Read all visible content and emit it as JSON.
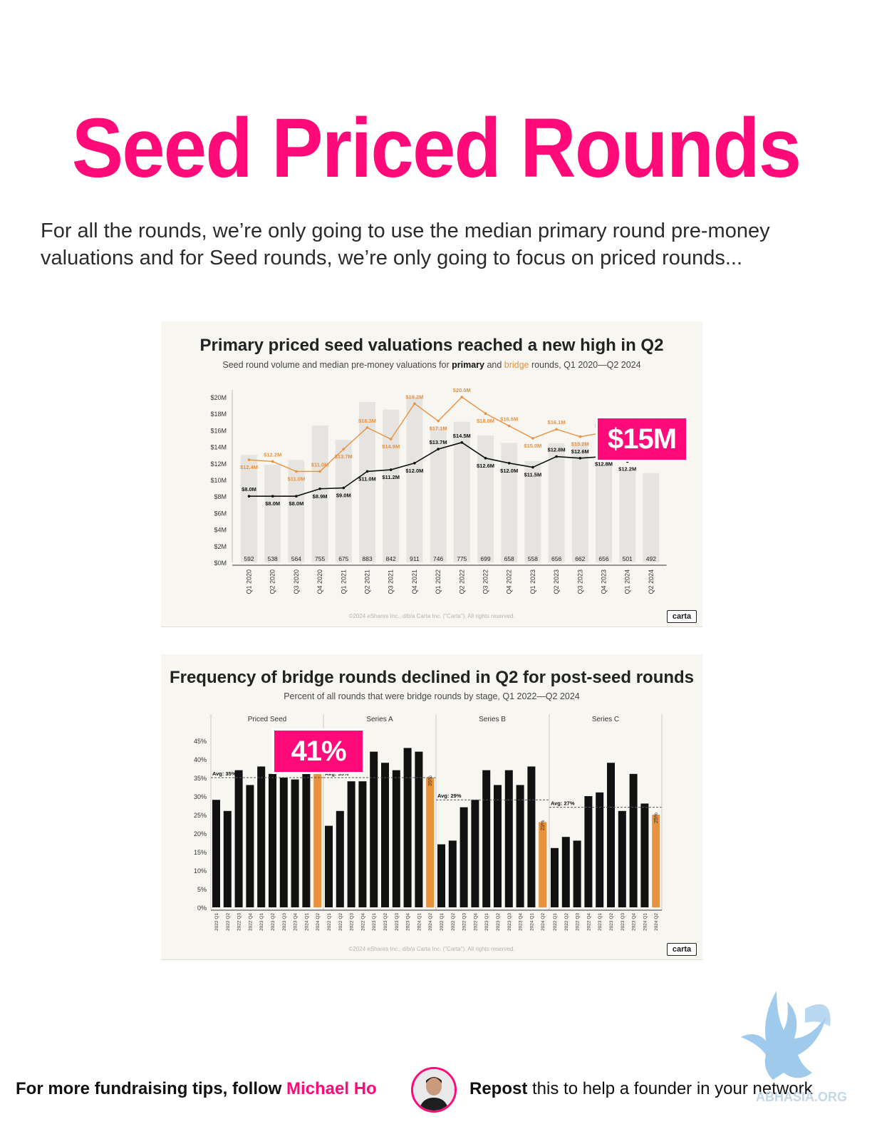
{
  "title": "Seed Priced Rounds",
  "intro": "For all the rounds, we’re only going to use the median primary round pre-money valuations and for Seed rounds, we’re only going to focus on priced rounds...",
  "callouts": {
    "chart1": "$15M",
    "chart2": "41%"
  },
  "footer": {
    "left_text": "For more fundraising tips, follow ",
    "left_name": "Michael Ho",
    "right_bold": "Repost",
    "right_text": " this to help a founder in your network"
  },
  "watermark_text": "ABHASIA.ORG",
  "brand": "carta",
  "copyright": "©2024 eShares Inc., d/b/a Carta Inc. (\"Carta\"). All rights reserved.",
  "colors": {
    "accent": "#ff0a78",
    "bridge": "#e8913f",
    "primary": "#111111",
    "volume_bar": "#e6e4e0",
    "panel_bg": "#f8f6f1"
  },
  "chart_data": [
    {
      "type": "bar+line",
      "title": "Primary priced seed valuations reached a new high in Q2",
      "subtitle_parts": [
        "Seed round volume and median pre-money valuations for ",
        "primary",
        " and ",
        "bridge",
        " rounds, Q1 2020—Q2 2024"
      ],
      "categories": [
        "Q1 2020",
        "Q2 2020",
        "Q3 2020",
        "Q4 2020",
        "Q1 2021",
        "Q2 2021",
        "Q3 2021",
        "Q4 2021",
        "Q1 2022",
        "Q2 2022",
        "Q3 2022",
        "Q4 2022",
        "Q1 2023",
        "Q2 2023",
        "Q3 2023",
        "Q4 2023",
        "Q1 2024",
        "Q2 2024"
      ],
      "volume": [
        592,
        538,
        564,
        755,
        675,
        883,
        842,
        911,
        746,
        775,
        699,
        658,
        558,
        656,
        662,
        656,
        501,
        492
      ],
      "volume_labels": [
        "592",
        "538",
        "564",
        "755",
        "675",
        "883",
        "842",
        "911",
        "746",
        "775",
        "699",
        "658",
        "558",
        "656",
        "662",
        "656",
        "501",
        "492"
      ],
      "yticks": [
        "$0M",
        "$2M",
        "$4M",
        "$6M",
        "$8M",
        "$10M",
        "$12M",
        "$14M",
        "$16M",
        "$18M",
        "$20M"
      ],
      "ylim": [
        0,
        20
      ],
      "series": [
        {
          "name": "primary",
          "color": "#111111",
          "values": [
            8.0,
            8.0,
            8.0,
            8.9,
            9.0,
            11.0,
            11.2,
            12.0,
            13.7,
            14.5,
            12.6,
            12.0,
            11.5,
            12.8,
            12.6,
            12.8,
            12.2,
            15.0
          ],
          "labels": [
            "$8.0M",
            "$8.0M",
            "$8.0M",
            "$8.9M",
            "$9.0M",
            "$11.0M",
            "$11.2M",
            "$12.0M",
            "$13.7M",
            "$14.5M",
            "$12.6M",
            "$12.0M",
            "$11.5M",
            "$12.8M",
            "$12.6M",
            "$12.8M",
            "$12.2M",
            ""
          ]
        },
        {
          "name": "bridge",
          "color": "#e8913f",
          "values": [
            12.4,
            12.2,
            11.0,
            11.0,
            13.7,
            16.3,
            14.9,
            19.2,
            17.1,
            20.0,
            18.0,
            16.5,
            15.0,
            16.1,
            15.2,
            15.7,
            null,
            null
          ],
          "labels": [
            "$12.4M",
            "$12.2M",
            "$11.0M",
            "$11.0M",
            "$13.7M",
            "$16.3M",
            "$14.9M",
            "$19.2M",
            "$17.1M",
            "$20.0M",
            "$18.0M",
            "$16.5M",
            "$15.0M",
            "$16.1M",
            "$15.2M",
            "$15.7M",
            "",
            ""
          ]
        }
      ]
    },
    {
      "type": "bar",
      "title": "Frequency of bridge rounds declined in Q2 for post-seed rounds",
      "subtitle": "Percent of all rounds that were bridge rounds by stage, Q1 2022—Q2 2024",
      "yticks": [
        "0%",
        "5%",
        "10%",
        "15%",
        "20%",
        "25%",
        "30%",
        "35%",
        "40%",
        "45%"
      ],
      "ylim": [
        0,
        45
      ],
      "categories": [
        "2022 Q1",
        "2022 Q2",
        "2022 Q3",
        "2022 Q4",
        "2023 Q1",
        "2023 Q2",
        "2023 Q3",
        "2023 Q4",
        "2024 Q1",
        "2024 Q2"
      ],
      "groups": [
        {
          "name": "Priced Seed",
          "avg": 35,
          "avg_label": "Avg: 35%",
          "values": [
            29,
            26,
            37,
            33,
            38,
            36,
            35,
            34.5,
            38,
            41
          ],
          "last_label": ""
        },
        {
          "name": "Series A",
          "avg": 35,
          "avg_label": "Avg: 35%",
          "values": [
            22,
            26,
            34,
            34,
            42,
            39,
            37,
            43,
            42,
            35
          ],
          "last_label": "35%"
        },
        {
          "name": "Series B",
          "avg": 29,
          "avg_label": "Avg: 29%",
          "values": [
            17,
            18,
            27,
            29,
            37,
            33,
            37,
            33,
            38,
            23
          ],
          "last_label": "23%"
        },
        {
          "name": "Series C",
          "avg": 27,
          "avg_label": "Avg: 27%",
          "values": [
            16,
            19,
            18,
            30,
            31,
            39,
            26,
            36,
            28,
            25
          ],
          "last_label": "25%"
        }
      ]
    }
  ]
}
